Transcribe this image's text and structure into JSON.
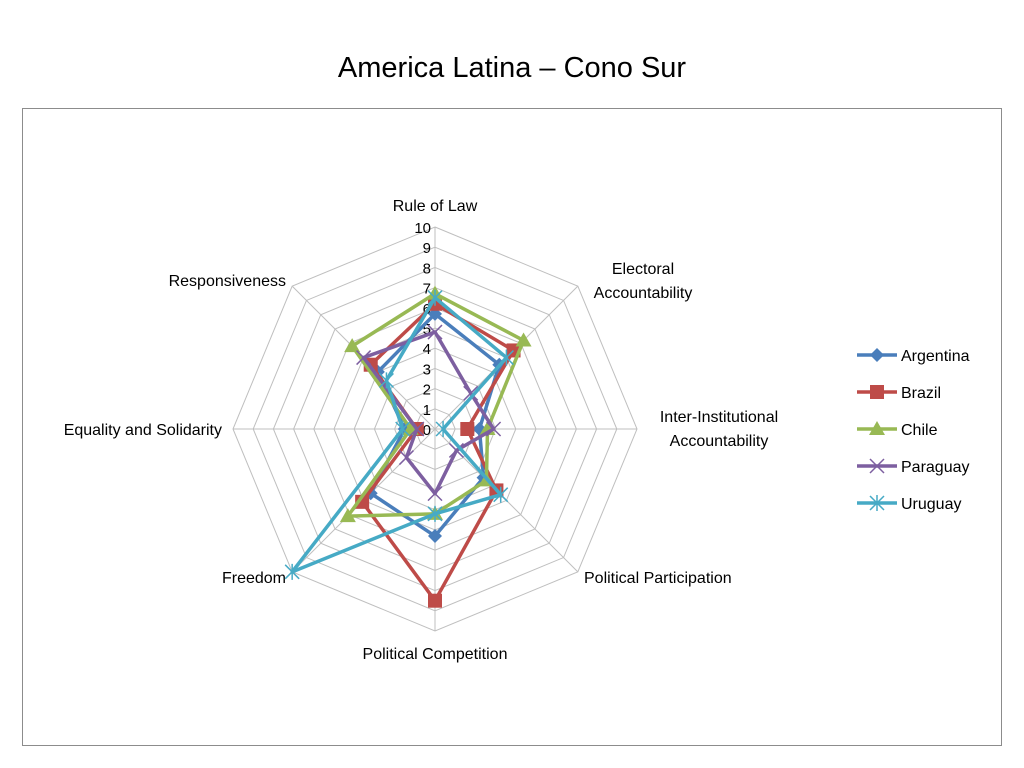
{
  "chart_data": {
    "type": "radar",
    "title": "America Latina – Cono Sur",
    "axes": [
      "Rule of Law",
      "Electoral Accountability",
      "Inter-Institutional Accountability",
      "Political Participation",
      "Political Competition",
      "Freedom",
      "Equality and Solidarity",
      "Responsiveness"
    ],
    "axis_label_lines": [
      [
        "Rule of Law"
      ],
      [
        "Electoral",
        "Accountability"
      ],
      [
        "Inter-Institutional",
        "Accountability"
      ],
      [
        "Political Participation"
      ],
      [
        "Political Competition"
      ],
      [
        "Freedom"
      ],
      [
        "Equality and Solidarity"
      ],
      [
        "Responsiveness"
      ]
    ],
    "rlim": [
      0,
      10
    ],
    "ticks": [
      "0",
      "1",
      "2",
      "3",
      "4",
      "5",
      "6",
      "7",
      "8",
      "9",
      "10"
    ],
    "grid": true,
    "legend_position": "right",
    "series": [
      {
        "name": "Argentina",
        "color": "#4a7ebb",
        "marker": "diamond",
        "values": [
          5.7,
          4.5,
          2.2,
          3.4,
          5.3,
          4.5,
          1.5,
          4.0
        ]
      },
      {
        "name": "Brazil",
        "color": "#be4b48",
        "marker": "square",
        "values": [
          6.2,
          5.5,
          1.6,
          4.3,
          8.5,
          5.1,
          0.9,
          4.5
        ]
      },
      {
        "name": "Chile",
        "color": "#98b954",
        "marker": "triangle",
        "values": [
          6.7,
          6.2,
          2.6,
          3.6,
          4.2,
          6.1,
          1.2,
          5.8
        ]
      },
      {
        "name": "Paraguay",
        "color": "#7d5fa0",
        "marker": "x",
        "values": [
          4.8,
          2.5,
          2.9,
          1.5,
          3.2,
          2.0,
          0.9,
          5.0
        ]
      },
      {
        "name": "Uruguay",
        "color": "#46aac5",
        "marker": "star",
        "values": [
          6.5,
          5.0,
          0.4,
          4.6,
          4.2,
          10.0,
          1.6,
          3.4
        ]
      }
    ]
  }
}
